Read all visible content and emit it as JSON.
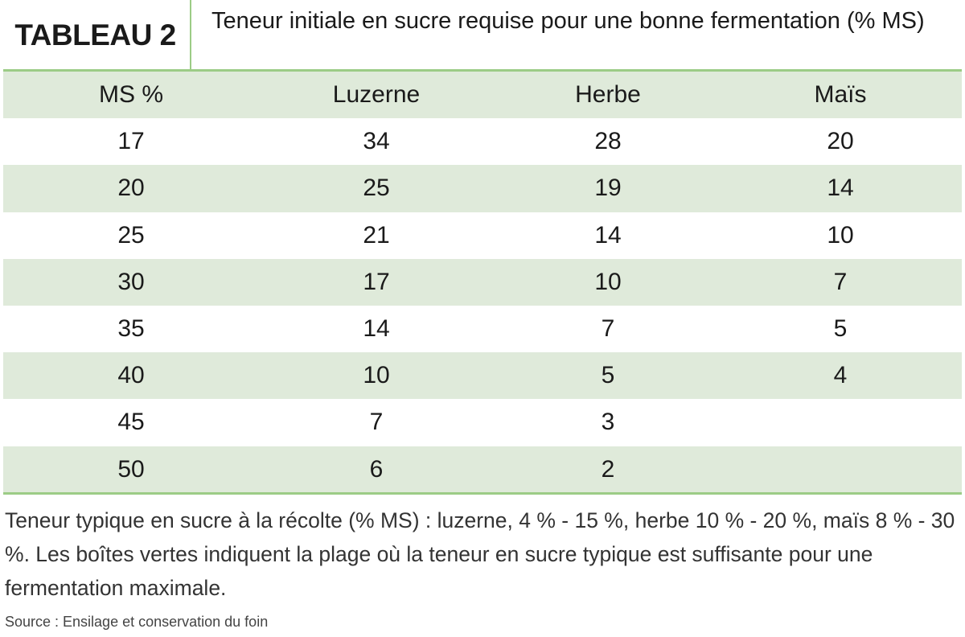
{
  "header": {
    "label": "TABLEAU 2",
    "title": "Teneur initiale en sucre requise pour une bonne fermentation (% MS)"
  },
  "table": {
    "columns": [
      "MS %",
      "Luzerne",
      "Herbe",
      "Maïs"
    ],
    "rows": [
      [
        17,
        34,
        28,
        20
      ],
      [
        20,
        25,
        19,
        14
      ],
      [
        25,
        21,
        14,
        10
      ],
      [
        30,
        17,
        10,
        7
      ],
      [
        35,
        14,
        7,
        5
      ],
      [
        40,
        10,
        5,
        4
      ],
      [
        45,
        7,
        3
      ],
      [
        50,
        6,
        2
      ]
    ]
  },
  "footnote": "Teneur typique en sucre à la récolte (% MS) : luzerne, 4 % - 15 %, herbe 10 % - 20 %, maïs 8 % - 30 %. Les boîtes vertes indiquent la plage où la teneur en sucre typique est suffisante pour une fermentation maximale.",
  "source": "Source : Ensilage et conservation du foin"
}
